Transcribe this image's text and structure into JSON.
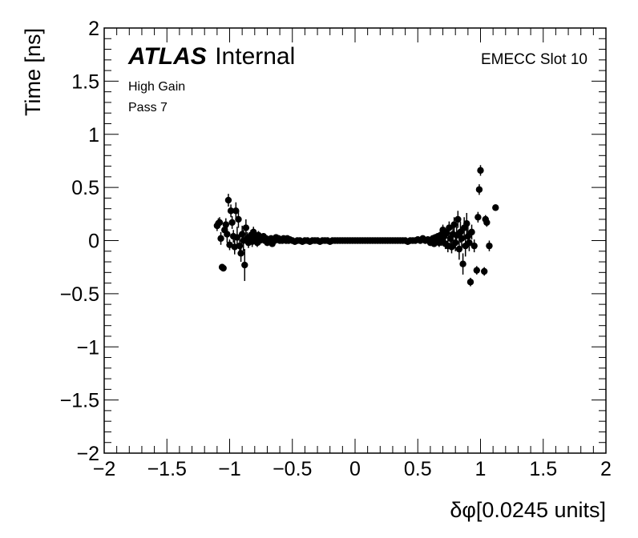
{
  "chart_data": {
    "type": "scatter",
    "xlabel": "δφ[0.0245 units]",
    "ylabel": "Time [ns]",
    "xlim": [
      -2,
      2
    ],
    "ylim": [
      -2,
      2
    ],
    "x_ticks": [
      -2,
      -1.5,
      -1,
      -0.5,
      0,
      0.5,
      1,
      1.5,
      2
    ],
    "y_ticks": [
      -2,
      -1.5,
      -1,
      -0.5,
      0,
      0.5,
      1,
      1.5,
      2
    ],
    "x_tick_labels": [
      "−2",
      "−1.5",
      "−1",
      "−0.5",
      "0",
      "0.5",
      "1",
      "1.5",
      "2"
    ],
    "y_tick_labels": [
      "−2",
      "−1.5",
      "−1",
      "−0.5",
      "0",
      "0.5",
      "1",
      "1.5",
      "2"
    ],
    "annotations": {
      "atlas": "ATLAS",
      "internal": "Internal",
      "gain": "High Gain",
      "pass": "Pass 7",
      "slot": "EMECC Slot 10"
    },
    "series": [
      {
        "marker": "circle",
        "color": "#000000",
        "points": [
          {
            "x": -1.1,
            "y": 0.14,
            "err": 0.05
          },
          {
            "x": -1.09,
            "y": 0.16,
            "err": 0.05
          },
          {
            "x": -1.08,
            "y": 0.17,
            "err": 0.05
          },
          {
            "x": -1.07,
            "y": 0.02,
            "err": 0.06
          },
          {
            "x": -1.06,
            "y": -0.25,
            "err": 0.03
          },
          {
            "x": -1.05,
            "y": -0.26,
            "err": 0.03
          },
          {
            "x": -1.04,
            "y": 0.1,
            "err": 0.06
          },
          {
            "x": -1.03,
            "y": 0.15,
            "err": 0.06
          },
          {
            "x": -1.02,
            "y": 0.06,
            "err": 0.08
          },
          {
            "x": -1.01,
            "y": 0.38,
            "err": 0.06
          },
          {
            "x": -1.0,
            "y": -0.04,
            "err": 0.05
          },
          {
            "x": -0.99,
            "y": 0.28,
            "err": 0.06
          },
          {
            "x": -0.98,
            "y": 0.17,
            "err": 0.06
          },
          {
            "x": -0.97,
            "y": 0.04,
            "err": 0.06
          },
          {
            "x": -0.96,
            "y": -0.06,
            "err": 0.07
          },
          {
            "x": -0.95,
            "y": 0.28,
            "err": 0.08
          },
          {
            "x": -0.94,
            "y": 0.03,
            "err": 0.1
          },
          {
            "x": -0.93,
            "y": 0.2,
            "err": 0.08
          },
          {
            "x": -0.92,
            "y": -0.05,
            "err": 0.06
          },
          {
            "x": -0.91,
            "y": -0.12,
            "err": 0.08
          },
          {
            "x": -0.9,
            "y": 0.06,
            "err": 0.08
          },
          {
            "x": -0.89,
            "y": 0.0,
            "err": 0.1
          },
          {
            "x": -0.88,
            "y": -0.23,
            "err": 0.15
          },
          {
            "x": -0.87,
            "y": 0.12,
            "err": 0.08
          },
          {
            "x": -0.86,
            "y": 0.02,
            "err": 0.06
          },
          {
            "x": -0.85,
            "y": -0.02,
            "err": 0.05
          },
          {
            "x": -0.84,
            "y": 0.03,
            "err": 0.05
          },
          {
            "x": -0.83,
            "y": 0.05,
            "err": 0.05
          },
          {
            "x": -0.82,
            "y": -0.01,
            "err": 0.05
          },
          {
            "x": -0.81,
            "y": 0.08,
            "err": 0.05
          },
          {
            "x": -0.8,
            "y": 0.01,
            "err": 0.04
          },
          {
            "x": -0.79,
            "y": 0.04,
            "err": 0.04
          },
          {
            "x": -0.78,
            "y": -0.02,
            "err": 0.04
          },
          {
            "x": -0.77,
            "y": 0.05,
            "err": 0.04
          },
          {
            "x": -0.76,
            "y": 0.0,
            "err": 0.04
          },
          {
            "x": -0.75,
            "y": 0.03,
            "err": 0.03
          },
          {
            "x": -0.74,
            "y": 0.01,
            "err": 0.03
          },
          {
            "x": -0.73,
            "y": 0.04,
            "err": 0.03
          },
          {
            "x": -0.72,
            "y": 0.0,
            "err": 0.03
          },
          {
            "x": -0.71,
            "y": 0.02,
            "err": 0.03
          },
          {
            "x": -0.7,
            "y": -0.02,
            "err": 0.03
          },
          {
            "x": -0.69,
            "y": 0.01,
            "err": 0.03
          },
          {
            "x": -0.68,
            "y": 0.0,
            "err": 0.02
          },
          {
            "x": -0.67,
            "y": 0.02,
            "err": 0.02
          },
          {
            "x": -0.66,
            "y": -0.03,
            "err": 0.02
          },
          {
            "x": -0.65,
            "y": 0.01,
            "err": 0.02
          },
          {
            "x": -0.64,
            "y": 0.0,
            "err": 0.02
          },
          {
            "x": -0.63,
            "y": 0.03,
            "err": 0.02
          },
          {
            "x": -0.62,
            "y": 0.01,
            "err": 0.02
          },
          {
            "x": -0.61,
            "y": 0.02,
            "err": 0.02
          },
          {
            "x": -0.6,
            "y": 0.0,
            "err": 0.02
          },
          {
            "x": -0.59,
            "y": 0.01,
            "err": 0.02
          },
          {
            "x": -0.58,
            "y": 0.0,
            "err": 0.02
          },
          {
            "x": -0.57,
            "y": 0.02,
            "err": 0.02
          },
          {
            "x": -0.56,
            "y": 0.01,
            "err": 0.02
          },
          {
            "x": -0.55,
            "y": 0.0,
            "err": 0.02
          },
          {
            "x": -0.54,
            "y": 0.02,
            "err": 0.02
          },
          {
            "x": -0.53,
            "y": 0.0,
            "err": 0.02
          },
          {
            "x": -0.52,
            "y": 0.01,
            "err": 0.02
          },
          {
            "x": -0.5,
            "y": 0.0,
            "err": 0.01
          },
          {
            "x": -0.48,
            "y": -0.01,
            "err": 0.01
          },
          {
            "x": -0.46,
            "y": 0.0,
            "err": 0.01
          },
          {
            "x": -0.44,
            "y": 0.0,
            "err": 0.01
          },
          {
            "x": -0.42,
            "y": -0.01,
            "err": 0.01
          },
          {
            "x": -0.4,
            "y": 0.0,
            "err": 0.01
          },
          {
            "x": -0.38,
            "y": 0.0,
            "err": 0.01
          },
          {
            "x": -0.36,
            "y": -0.01,
            "err": 0.01
          },
          {
            "x": -0.34,
            "y": 0.0,
            "err": 0.01
          },
          {
            "x": -0.32,
            "y": 0.0,
            "err": 0.01
          },
          {
            "x": -0.3,
            "y": 0.0,
            "err": 0.01
          },
          {
            "x": -0.28,
            "y": -0.01,
            "err": 0.01
          },
          {
            "x": -0.26,
            "y": 0.0,
            "err": 0.01
          },
          {
            "x": -0.24,
            "y": 0.0,
            "err": 0.01
          },
          {
            "x": -0.22,
            "y": 0.0,
            "err": 0.01
          },
          {
            "x": -0.2,
            "y": -0.01,
            "err": 0.01
          },
          {
            "x": -0.18,
            "y": 0.0,
            "err": 0.01
          },
          {
            "x": -0.16,
            "y": 0.0,
            "err": 0.01
          },
          {
            "x": -0.14,
            "y": 0.0,
            "err": 0.01
          },
          {
            "x": -0.12,
            "y": 0.0,
            "err": 0.01
          },
          {
            "x": -0.1,
            "y": 0.0,
            "err": 0.01
          },
          {
            "x": -0.08,
            "y": 0.0,
            "err": 0.01
          },
          {
            "x": -0.06,
            "y": 0.0,
            "err": 0.01
          },
          {
            "x": -0.04,
            "y": 0.0,
            "err": 0.01
          },
          {
            "x": -0.02,
            "y": 0.0,
            "err": 0.01
          },
          {
            "x": 0.0,
            "y": 0.0,
            "err": 0.01
          },
          {
            "x": 0.02,
            "y": 0.0,
            "err": 0.01
          },
          {
            "x": 0.04,
            "y": 0.0,
            "err": 0.01
          },
          {
            "x": 0.06,
            "y": 0.0,
            "err": 0.01
          },
          {
            "x": 0.08,
            "y": 0.0,
            "err": 0.01
          },
          {
            "x": 0.1,
            "y": 0.0,
            "err": 0.01
          },
          {
            "x": 0.12,
            "y": 0.0,
            "err": 0.01
          },
          {
            "x": 0.14,
            "y": 0.0,
            "err": 0.01
          },
          {
            "x": 0.16,
            "y": 0.0,
            "err": 0.01
          },
          {
            "x": 0.18,
            "y": 0.0,
            "err": 0.01
          },
          {
            "x": 0.2,
            "y": 0.0,
            "err": 0.01
          },
          {
            "x": 0.22,
            "y": 0.0,
            "err": 0.01
          },
          {
            "x": 0.24,
            "y": 0.0,
            "err": 0.01
          },
          {
            "x": 0.26,
            "y": 0.0,
            "err": 0.01
          },
          {
            "x": 0.28,
            "y": 0.0,
            "err": 0.01
          },
          {
            "x": 0.3,
            "y": 0.0,
            "err": 0.01
          },
          {
            "x": 0.32,
            "y": 0.0,
            "err": 0.01
          },
          {
            "x": 0.34,
            "y": 0.0,
            "err": 0.01
          },
          {
            "x": 0.36,
            "y": 0.0,
            "err": 0.01
          },
          {
            "x": 0.38,
            "y": 0.0,
            "err": 0.01
          },
          {
            "x": 0.4,
            "y": 0.0,
            "err": 0.01
          },
          {
            "x": 0.42,
            "y": -0.01,
            "err": 0.01
          },
          {
            "x": 0.44,
            "y": 0.0,
            "err": 0.01
          },
          {
            "x": 0.46,
            "y": 0.0,
            "err": 0.01
          },
          {
            "x": 0.48,
            "y": 0.0,
            "err": 0.01
          },
          {
            "x": 0.5,
            "y": 0.01,
            "err": 0.01
          },
          {
            "x": 0.52,
            "y": 0.0,
            "err": 0.02
          },
          {
            "x": 0.54,
            "y": 0.02,
            "err": 0.02
          },
          {
            "x": 0.56,
            "y": 0.0,
            "err": 0.02
          },
          {
            "x": 0.58,
            "y": 0.01,
            "err": 0.02
          },
          {
            "x": 0.6,
            "y": -0.02,
            "err": 0.02
          },
          {
            "x": 0.61,
            "y": 0.0,
            "err": 0.02
          },
          {
            "x": 0.62,
            "y": 0.02,
            "err": 0.03
          },
          {
            "x": 0.63,
            "y": -0.03,
            "err": 0.03
          },
          {
            "x": 0.64,
            "y": 0.03,
            "err": 0.03
          },
          {
            "x": 0.65,
            "y": 0.0,
            "err": 0.03
          },
          {
            "x": 0.66,
            "y": 0.04,
            "err": 0.03
          },
          {
            "x": 0.67,
            "y": -0.02,
            "err": 0.04
          },
          {
            "x": 0.68,
            "y": 0.05,
            "err": 0.04
          },
          {
            "x": 0.69,
            "y": 0.0,
            "err": 0.05
          },
          {
            "x": 0.7,
            "y": 0.1,
            "err": 0.05
          },
          {
            "x": 0.71,
            "y": 0.04,
            "err": 0.05
          },
          {
            "x": 0.72,
            "y": -0.03,
            "err": 0.05
          },
          {
            "x": 0.73,
            "y": 0.07,
            "err": 0.05
          },
          {
            "x": 0.74,
            "y": -0.05,
            "err": 0.06
          },
          {
            "x": 0.75,
            "y": 0.12,
            "err": 0.06
          },
          {
            "x": 0.76,
            "y": 0.02,
            "err": 0.06
          },
          {
            "x": 0.77,
            "y": -0.06,
            "err": 0.06
          },
          {
            "x": 0.78,
            "y": 0.06,
            "err": 0.07
          },
          {
            "x": 0.79,
            "y": 0.15,
            "err": 0.07
          },
          {
            "x": 0.8,
            "y": -0.02,
            "err": 0.08
          },
          {
            "x": 0.81,
            "y": 0.05,
            "err": 0.08
          },
          {
            "x": 0.82,
            "y": 0.2,
            "err": 0.08
          },
          {
            "x": 0.83,
            "y": -0.08,
            "err": 0.1
          },
          {
            "x": 0.84,
            "y": 0.08,
            "err": 0.1
          },
          {
            "x": 0.85,
            "y": 0.02,
            "err": 0.1
          },
          {
            "x": 0.86,
            "y": -0.22,
            "err": 0.1
          },
          {
            "x": 0.87,
            "y": 0.12,
            "err": 0.1
          },
          {
            "x": 0.88,
            "y": -0.05,
            "err": 0.1
          },
          {
            "x": 0.89,
            "y": 0.16,
            "err": 0.1
          },
          {
            "x": 0.9,
            "y": 0.04,
            "err": 0.1
          },
          {
            "x": 0.91,
            "y": -0.02,
            "err": 0.08
          },
          {
            "x": 0.92,
            "y": -0.39,
            "err": 0.04
          },
          {
            "x": 0.93,
            "y": 0.08,
            "err": 0.07
          },
          {
            "x": 0.95,
            "y": -0.05,
            "err": 0.06
          },
          {
            "x": 0.97,
            "y": -0.28,
            "err": 0.04
          },
          {
            "x": 0.98,
            "y": 0.22,
            "err": 0.05
          },
          {
            "x": 0.99,
            "y": 0.48,
            "err": 0.05
          },
          {
            "x": 1.0,
            "y": 0.66,
            "err": 0.05
          },
          {
            "x": 1.03,
            "y": -0.29,
            "err": 0.04
          },
          {
            "x": 1.04,
            "y": 0.2,
            "err": 0.04
          },
          {
            "x": 1.05,
            "y": 0.17,
            "err": 0.04
          },
          {
            "x": 1.07,
            "y": -0.05,
            "err": 0.05
          },
          {
            "x": 1.12,
            "y": 0.31,
            "err": 0.03
          }
        ]
      }
    ]
  }
}
